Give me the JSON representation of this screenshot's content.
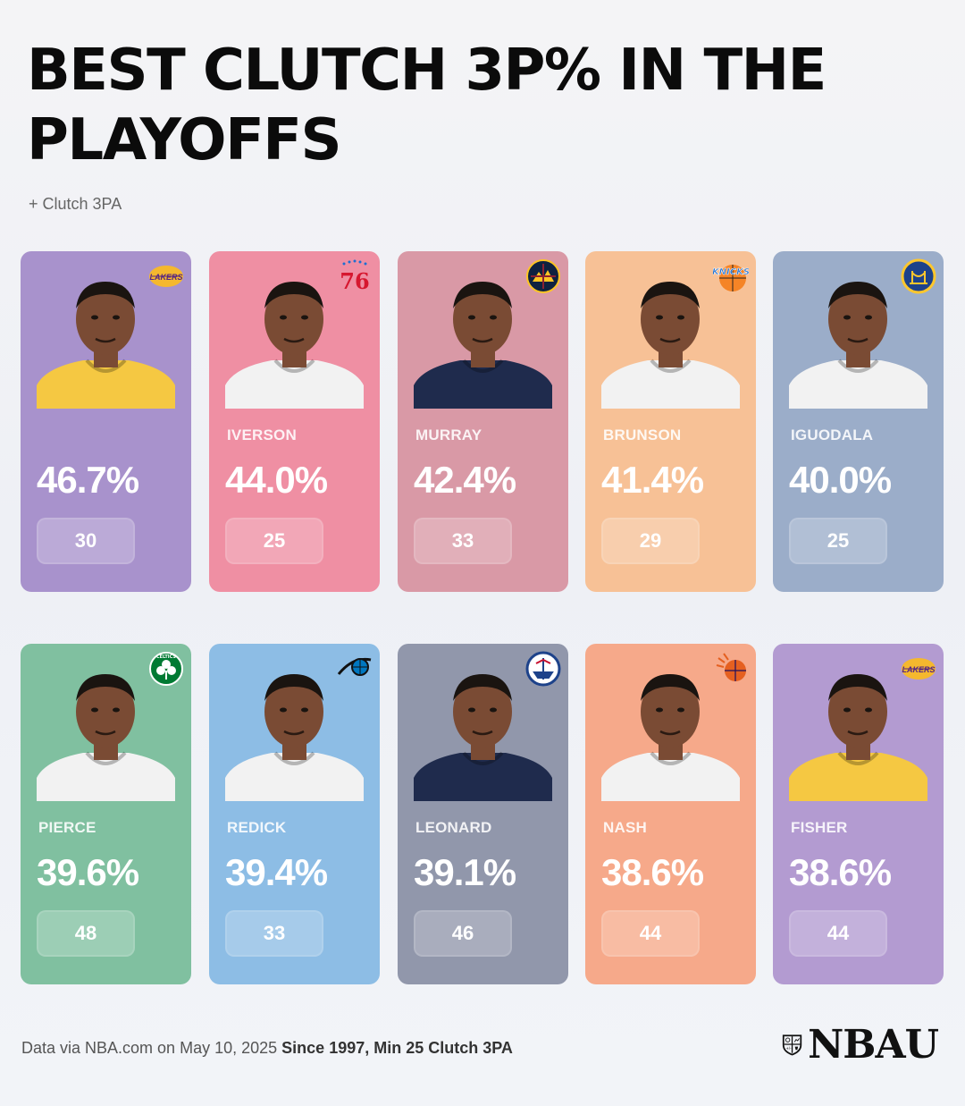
{
  "header": {
    "title": "BEST CLUTCH 3P% IN THE PLAYOFFS",
    "subtitle": "+ Clutch 3PA"
  },
  "players": [
    {
      "name": "",
      "pct": "46.7%",
      "attempts": "30",
      "team": "Lakers",
      "logo_icon": "lakers-logo-icon",
      "color": "#a892cc",
      "jersey": "#f5c842"
    },
    {
      "name": "IVERSON",
      "pct": "44.0%",
      "attempts": "25",
      "team": "76ers",
      "logo_text": "76",
      "logo_icon": "sixers-logo-icon",
      "color": "#ef8fa3",
      "jersey": "#f2f2f2"
    },
    {
      "name": "MURRAY",
      "pct": "42.4%",
      "attempts": "33",
      "team": "Nuggets",
      "logo_icon": "nuggets-logo-icon",
      "color": "#d999a6",
      "jersey": "#1f2b4d"
    },
    {
      "name": "BRUNSON",
      "pct": "41.4%",
      "attempts": "29",
      "team": "Knicks",
      "logo_icon": "knicks-logo-icon",
      "color": "#f7c196",
      "jersey": "#f2f2f2"
    },
    {
      "name": "IGUODALA",
      "pct": "40.0%",
      "attempts": "25",
      "team": "Warriors",
      "logo_icon": "warriors-logo-icon",
      "color": "#9badc9",
      "jersey": "#f2f2f2"
    },
    {
      "name": "PIERCE",
      "pct": "39.6%",
      "attempts": "48",
      "team": "Celtics",
      "logo_text": "CELTICS",
      "logo_icon": "celtics-logo-icon",
      "color": "#80c0a0",
      "jersey": "#f2f2f2"
    },
    {
      "name": "REDICK",
      "pct": "39.4%",
      "attempts": "33",
      "team": "Magic",
      "logo_icon": "magic-logo-icon",
      "color": "#8dbde5",
      "jersey": "#f2f2f2"
    },
    {
      "name": "LEONARD",
      "pct": "39.1%",
      "attempts": "46",
      "team": "Clippers",
      "logo_icon": "clippers-logo-icon",
      "color": "#9197ab",
      "jersey": "#1f2b4d"
    },
    {
      "name": "NASH",
      "pct": "38.6%",
      "attempts": "44",
      "team": "Suns",
      "logo_icon": "suns-logo-icon",
      "color": "#f6a98a",
      "jersey": "#f2f2f2"
    },
    {
      "name": "FISHER",
      "pct": "38.6%",
      "attempts": "44",
      "team": "Lakers",
      "logo_icon": "lakers-logo-icon",
      "color": "#b39bd1",
      "jersey": "#f5c842"
    }
  ],
  "footer": {
    "source": "Data via NBA.com on May 10, 2025",
    "note": "Since 1997, Min 25 Clutch 3PA",
    "brand": "NBAU"
  }
}
